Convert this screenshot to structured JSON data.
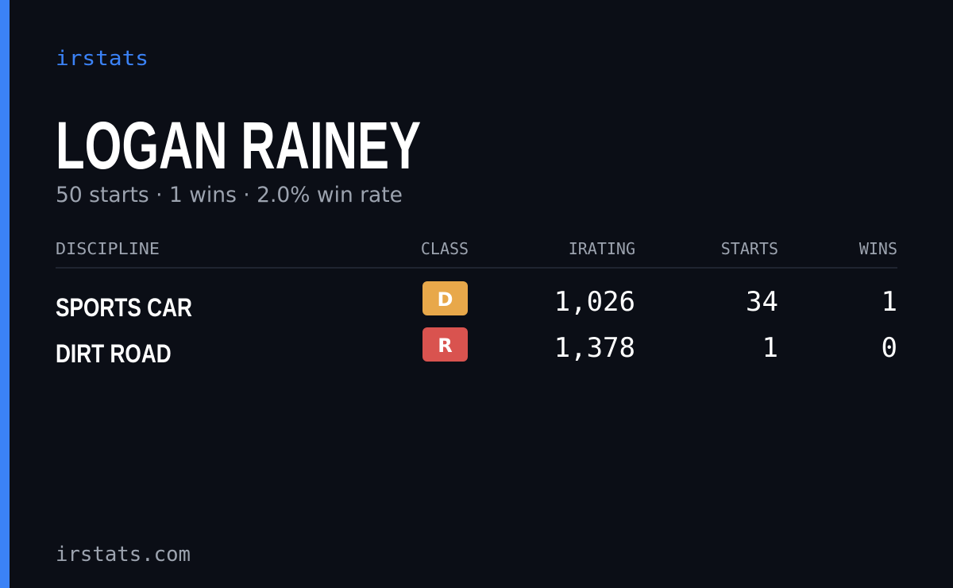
{
  "brand": "irstats",
  "driver": {
    "name": "LOGAN RAINEY",
    "summary": "50 starts · 1 wins · 2.0% win rate"
  },
  "table": {
    "headers": [
      "DISCIPLINE",
      "CLASS",
      "IRATING",
      "STARTS",
      "WINS"
    ],
    "rows": [
      {
        "discipline": "SPORTS CAR",
        "class": "D",
        "class_color": "#e8a84a",
        "irating": "1,026",
        "starts": "34",
        "wins": "1"
      },
      {
        "discipline": "DIRT ROAD",
        "class": "R",
        "class_color": "#d9534f",
        "irating": "1,378",
        "starts": "1",
        "wins": "0"
      }
    ]
  },
  "footer": "irstats.com"
}
